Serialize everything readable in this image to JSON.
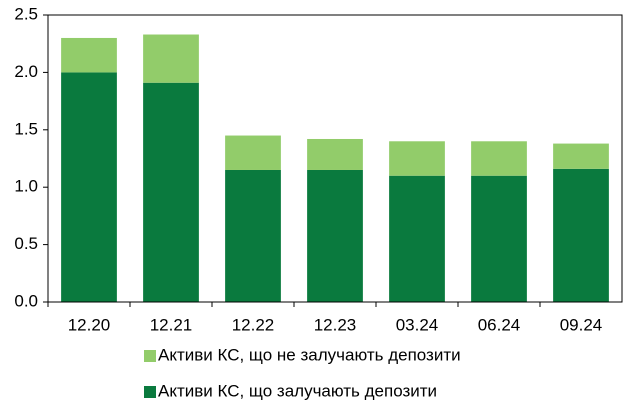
{
  "chart_data": {
    "type": "stacked_bar",
    "categories": [
      "12.20",
      "12.21",
      "12.22",
      "12.23",
      "03.24",
      "06.24",
      "09.24"
    ],
    "series": [
      {
        "name": "Активи КС, що залучають депозити",
        "color": "#0a7a3e",
        "values": [
          2.0,
          1.91,
          1.15,
          1.15,
          1.1,
          1.1,
          1.16
        ]
      },
      {
        "name": "Активи КС, що не залучають депозити",
        "color": "#92cc6a",
        "values": [
          0.3,
          0.42,
          0.3,
          0.27,
          0.3,
          0.3,
          0.22
        ]
      }
    ],
    "ylim": [
      0,
      2.5
    ],
    "yticks": [
      {
        "value": 0,
        "label": "0.0"
      },
      0.5,
      {
        "value": 1,
        "label": "1.0"
      },
      1.5,
      {
        "value": 2,
        "label": "2.0"
      },
      2.5
    ],
    "legend": "bottom"
  }
}
